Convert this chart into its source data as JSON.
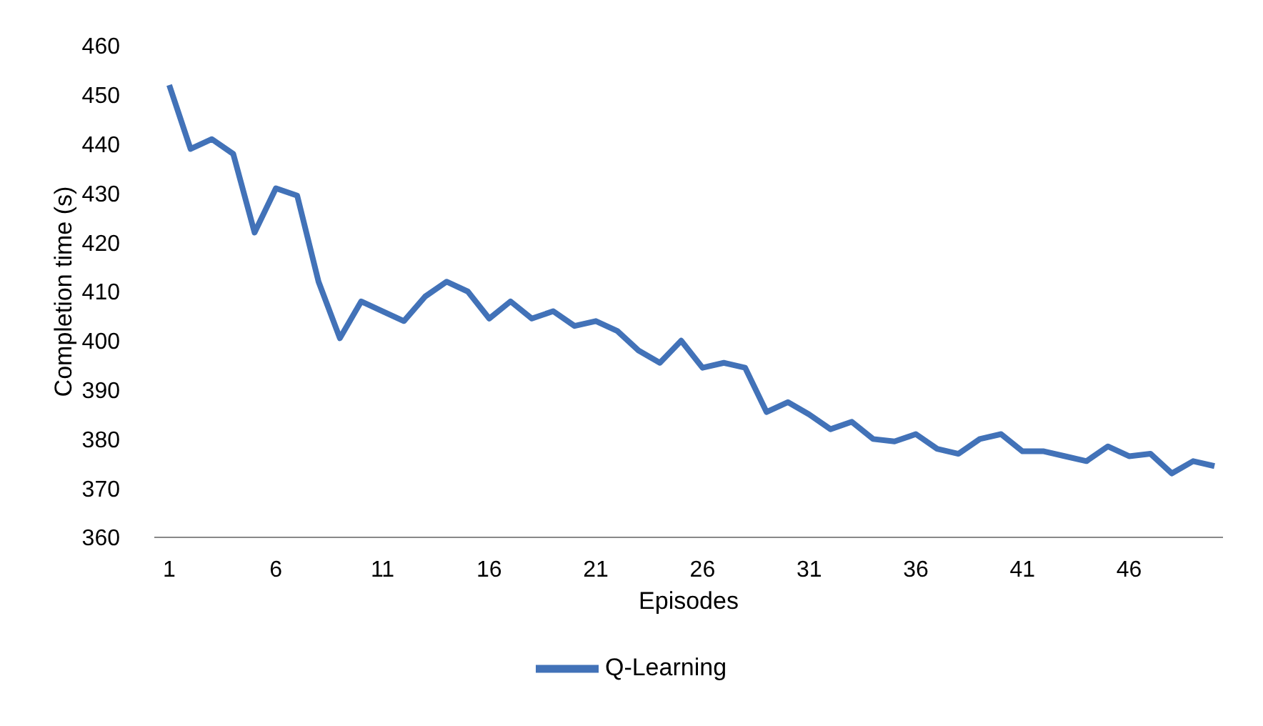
{
  "chart_data": {
    "type": "line",
    "xlabel": "Episodes",
    "ylabel": "Completion time (s)",
    "x": [
      1,
      2,
      3,
      4,
      5,
      6,
      7,
      8,
      9,
      10,
      11,
      12,
      13,
      14,
      15,
      16,
      17,
      18,
      19,
      20,
      21,
      22,
      23,
      24,
      25,
      26,
      27,
      28,
      29,
      30,
      31,
      32,
      33,
      34,
      35,
      36,
      37,
      38,
      39,
      40,
      41,
      42,
      43,
      44,
      45,
      46,
      47,
      48,
      49,
      50
    ],
    "xlim": [
      0.3,
      50.4
    ],
    "xticks": [
      1,
      6,
      11,
      16,
      21,
      26,
      31,
      36,
      41,
      46
    ],
    "series": [
      {
        "name": "Q-Learning",
        "color": "#4272b8",
        "values": [
          452,
          439,
          441,
          438,
          422,
          431,
          429.5,
          412,
          400.5,
          408,
          406,
          404,
          409,
          412,
          410,
          404.5,
          408,
          404.5,
          406,
          403,
          404,
          402,
          398,
          395.5,
          400,
          394.5,
          395.5,
          394.5,
          385.5,
          387.5,
          385,
          382,
          383.5,
          380,
          379.5,
          381,
          378,
          377,
          380,
          381,
          377.5,
          377.5,
          376.5,
          375.5,
          378.5,
          376.5,
          377,
          373,
          375.5,
          374.5
        ]
      }
    ],
    "ylim": [
      360,
      460
    ],
    "yticks": [
      360,
      370,
      380,
      390,
      400,
      410,
      420,
      430,
      440,
      450,
      460
    ],
    "grid": false,
    "legend": "bottom",
    "marker": "none",
    "line_style": "solid"
  }
}
